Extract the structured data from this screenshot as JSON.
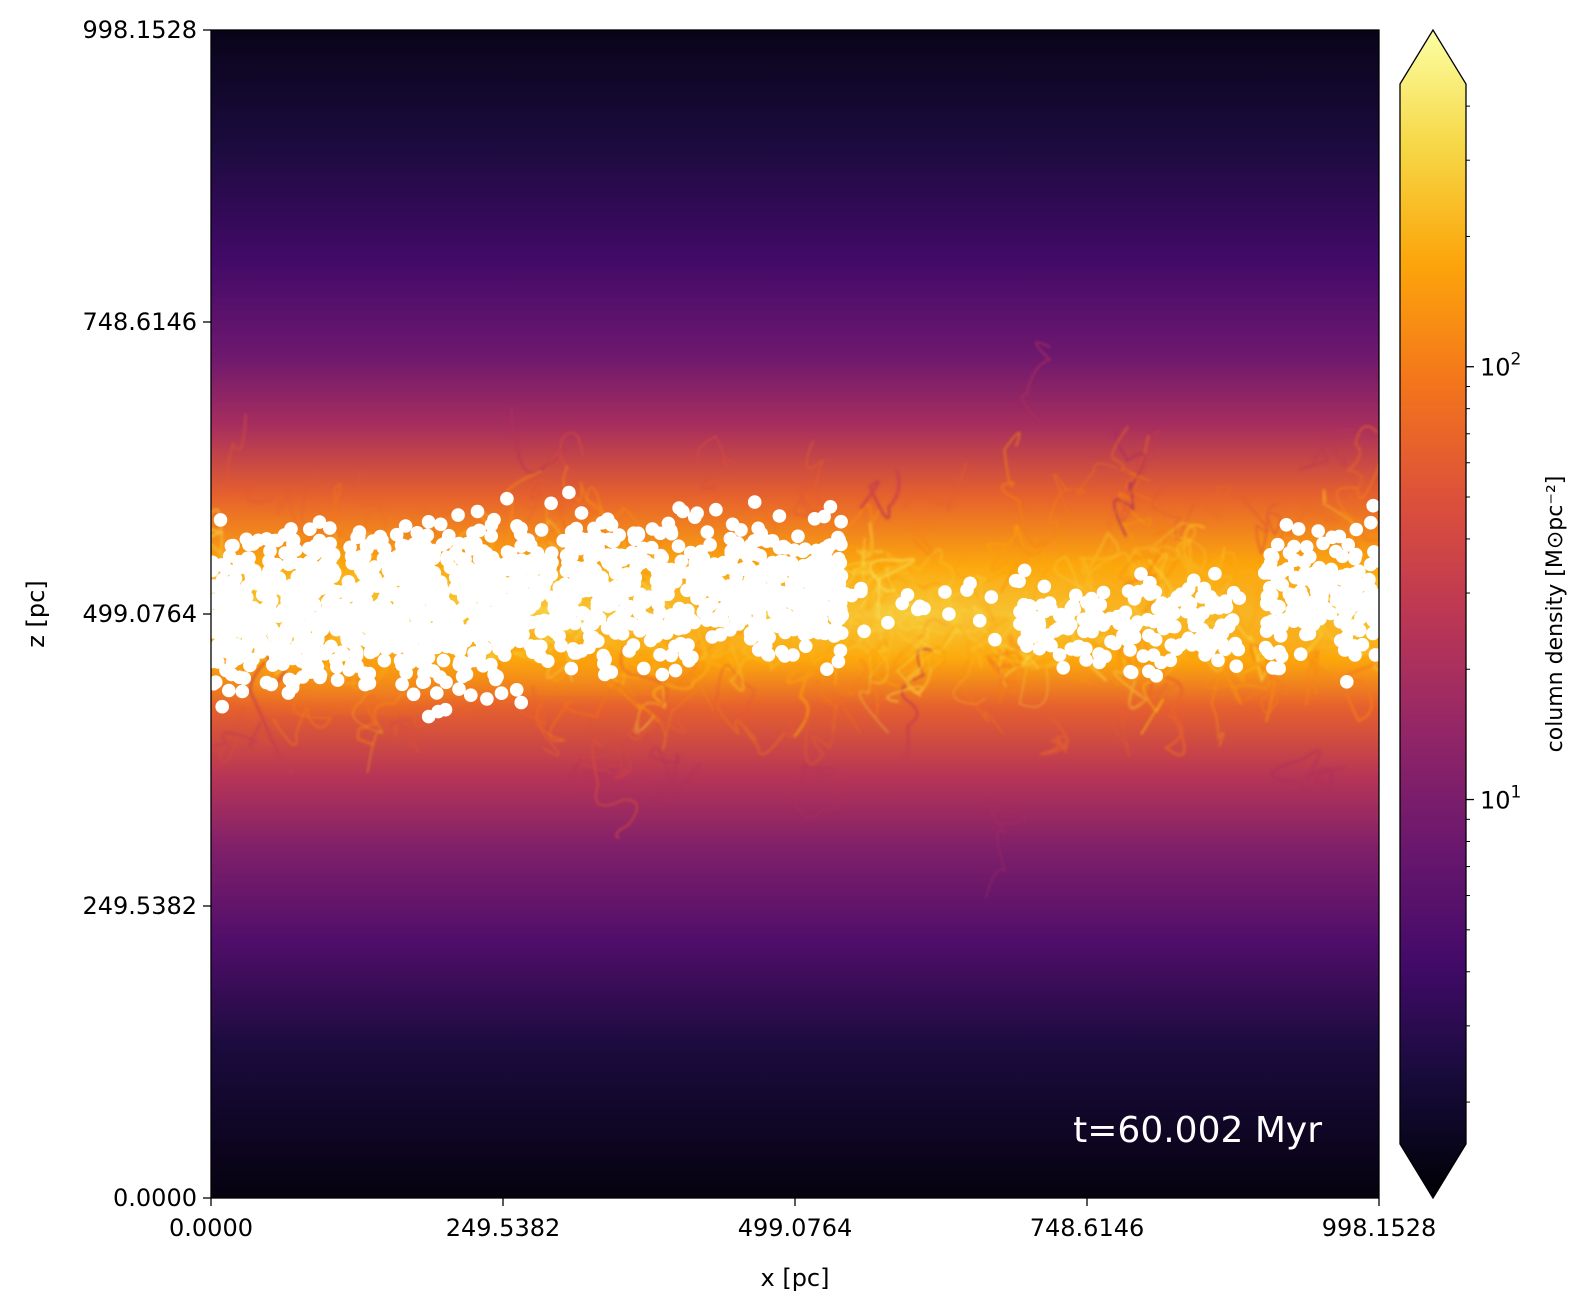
{
  "chart_data": {
    "type": "heatmap",
    "title": "",
    "xlabel": "x [pc]",
    "ylabel": "z [pc]",
    "xlim": [
      0.0,
      998.1528
    ],
    "ylim": [
      0.0,
      998.1528
    ],
    "x_ticks": [
      "0.0000",
      "249.5382",
      "499.0764",
      "748.6146",
      "998.1528"
    ],
    "y_ticks": [
      "0.0000",
      "249.5382",
      "499.0764",
      "748.6146",
      "998.1528"
    ],
    "annotation": "t=60.002 Myr",
    "colormap": "inferno",
    "colorbar": {
      "label": "column density [M⊙pc⁻²]",
      "scale": "log",
      "range": [
        1.6,
        450
      ],
      "extend": "both",
      "major_ticks": [
        {
          "value": 10,
          "base": "10",
          "exp": "1"
        },
        {
          "value": 100,
          "base": "10",
          "exp": "2"
        }
      ],
      "minor_ticks": [
        2,
        3,
        4,
        5,
        6,
        7,
        8,
        9,
        20,
        30,
        40,
        50,
        60,
        70,
        80,
        90,
        200,
        300,
        400
      ]
    },
    "density_profile": [
      {
        "z": 998.15,
        "value": 2.0
      },
      {
        "z": 900,
        "value": 3.0
      },
      {
        "z": 800,
        "value": 5.0
      },
      {
        "z": 720,
        "value": 9.0
      },
      {
        "z": 660,
        "value": 20.0
      },
      {
        "z": 600,
        "value": 60.0
      },
      {
        "z": 540,
        "value": 150.0
      },
      {
        "z": 499.08,
        "value": 250.0
      },
      {
        "z": 460,
        "value": 150.0
      },
      {
        "z": 420,
        "value": 60.0
      },
      {
        "z": 360,
        "value": 25.0
      },
      {
        "z": 300,
        "value": 12.0
      },
      {
        "z": 220,
        "value": 6.0
      },
      {
        "z": 130,
        "value": 3.0
      },
      {
        "z": 0,
        "value": 1.8
      }
    ],
    "star_particles": [
      {
        "x_range": [
          0,
          270
        ],
        "z_range": [
          420,
          590
        ],
        "count": 900
      },
      {
        "x_range": [
          270,
          500
        ],
        "z_range": [
          440,
          600
        ],
        "count": 520
      },
      {
        "x_range": [
          500,
          540
        ],
        "z_range": [
          450,
          590
        ],
        "count": 120
      },
      {
        "x_range": [
          540,
          700
        ],
        "z_range": [
          470,
          535
        ],
        "count": 20
      },
      {
        "x_range": [
          690,
          880
        ],
        "z_range": [
          440,
          540
        ],
        "count": 180
      },
      {
        "x_range": [
          900,
          998
        ],
        "z_range": [
          440,
          590
        ],
        "count": 180
      }
    ],
    "colors": {
      "stars": "#ffffff",
      "annotation": "#ffffff"
    }
  }
}
